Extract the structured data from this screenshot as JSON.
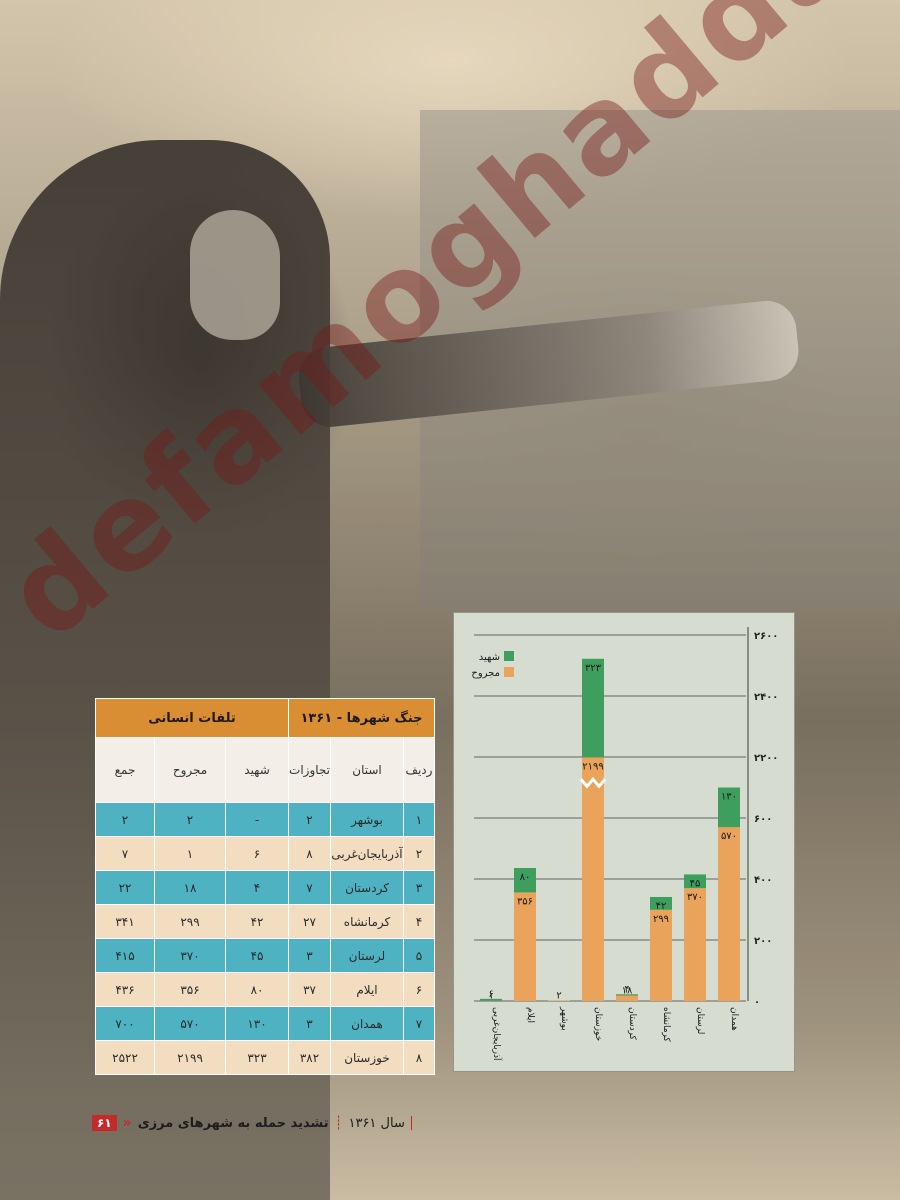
{
  "watermark": "defamoghaddas.ir",
  "table": {
    "title_right": "جنگ شهرها - ۱۳۶۱",
    "title_left": "تلفات انسانی",
    "columns": [
      "ردیف",
      "استان",
      "تجاوزات",
      "شهید",
      "مجروح",
      "جمع"
    ],
    "rows": [
      [
        "۱",
        "بوشهر",
        "۲",
        "-",
        "۲",
        "۲"
      ],
      [
        "۲",
        "آذربایجان‌غربی",
        "۸",
        "۶",
        "۱",
        "۷"
      ],
      [
        "۳",
        "کردستان",
        "۷",
        "۴",
        "۱۸",
        "۲۲"
      ],
      [
        "۴",
        "کرمانشاه",
        "۲۷",
        "۴۲",
        "۲۹۹",
        "۳۴۱"
      ],
      [
        "۵",
        "لرستان",
        "۳",
        "۴۵",
        "۳۷۰",
        "۴۱۵"
      ],
      [
        "۶",
        "ایلام",
        "۳۷",
        "۸۰",
        "۳۵۶",
        "۴۳۶"
      ],
      [
        "۷",
        "همدان",
        "۳",
        "۱۳۰",
        "۵۷۰",
        "۷۰۰"
      ],
      [
        "۸",
        "خوزستان",
        "۳۸۲",
        "۳۲۳",
        "۲۱۹۹",
        "۲۵۲۲"
      ]
    ]
  },
  "chart_data": {
    "type": "bar",
    "stacked": true,
    "broken_axis": true,
    "categories": [
      "آذربایجان‌غربی",
      "ایلام",
      "بوشهر",
      "خوزستان",
      "کردستان",
      "کرمانشاه",
      "لرستان",
      "همدان"
    ],
    "series": [
      {
        "name": "مجروح",
        "color": "#e9a35a",
        "values": [
          1,
          356,
          2,
          2199,
          18,
          299,
          370,
          570
        ],
        "labels": [
          "۱",
          "۳۵۶",
          "۲",
          "۲۱۹۹",
          "۱۸",
          "۲۹۹",
          "۳۷۰",
          "۵۷۰"
        ]
      },
      {
        "name": "شهید",
        "color": "#3e9e5e",
        "values": [
          6,
          80,
          0,
          323,
          4,
          42,
          45,
          130
        ],
        "labels": [
          "۶",
          "۸۰",
          "",
          "۳۲۳",
          "۴",
          "۴۲",
          "۴۵",
          "۱۳۰"
        ]
      }
    ],
    "y_ticks": [
      "۰",
      "۲۰۰",
      "۴۰۰",
      "۶۰۰",
      "۲۲۰۰",
      "۲۴۰۰",
      "۲۶۰۰"
    ],
    "y_tick_values": [
      0,
      200,
      400,
      600,
      2200,
      2400,
      2600
    ],
    "legend_placement": "top-left",
    "grid": true
  },
  "footer": {
    "year": "سال ۱۳۶۱",
    "title": "تشدید حمله به شهرهای مرزی",
    "page": "۶۱"
  }
}
